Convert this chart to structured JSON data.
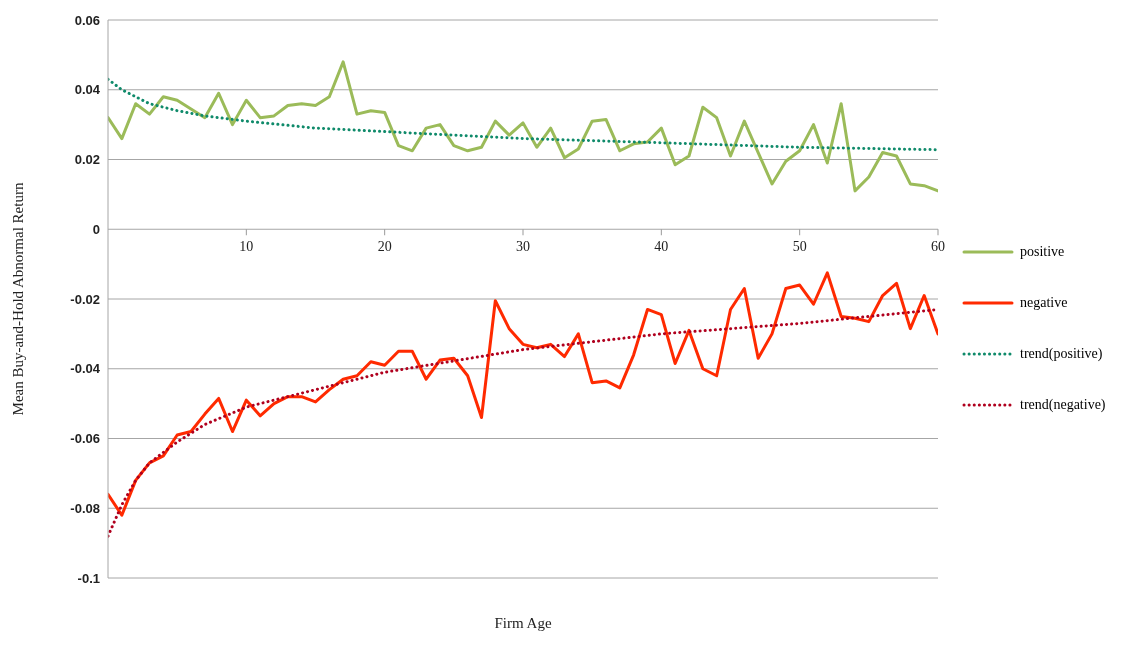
{
  "chart_data": {
    "type": "line",
    "xlabel": "Firm Age",
    "ylabel": "Mean Buy-and-Hold Abnormal Return",
    "xlim": [
      0,
      60
    ],
    "xticks": [
      10,
      20,
      30,
      40,
      50,
      60
    ],
    "ylim": [
      -0.1,
      0.06
    ],
    "yticks": [
      -0.1,
      -0.08,
      -0.06,
      -0.04,
      -0.02,
      0,
      0.02,
      0.04,
      0.06
    ],
    "grid": "y",
    "legend": "right",
    "marker": "none",
    "x": [
      0,
      1,
      2,
      3,
      4,
      5,
      6,
      7,
      8,
      9,
      10,
      11,
      12,
      13,
      14,
      15,
      16,
      17,
      18,
      19,
      20,
      21,
      22,
      23,
      24,
      25,
      26,
      27,
      28,
      29,
      30,
      31,
      32,
      33,
      34,
      35,
      36,
      37,
      38,
      39,
      40,
      41,
      42,
      43,
      44,
      45,
      46,
      47,
      48,
      49,
      50,
      51,
      52,
      53,
      54,
      55,
      56,
      57,
      58,
      59,
      60
    ],
    "series": [
      {
        "name": "positive",
        "color": "#9bbb59",
        "line_style": "solid",
        "values": [
          0.032,
          0.026,
          0.036,
          0.033,
          0.038,
          0.037,
          0.0345,
          0.032,
          0.039,
          0.03,
          0.037,
          0.032,
          0.0325,
          0.0355,
          0.036,
          0.0355,
          0.038,
          0.048,
          0.033,
          0.034,
          0.0335,
          0.024,
          0.0225,
          0.029,
          0.03,
          0.024,
          0.0225,
          0.0235,
          0.031,
          0.027,
          0.0305,
          0.0235,
          0.029,
          0.0205,
          0.023,
          0.031,
          0.0315,
          0.0225,
          0.0245,
          0.025,
          0.029,
          0.0185,
          0.021,
          0.035,
          0.032,
          0.021,
          0.031,
          0.022,
          0.013,
          0.0195,
          0.0225,
          0.03,
          0.019,
          0.036,
          0.011,
          0.015,
          0.022,
          0.021,
          0.013,
          0.0125,
          0.011
        ]
      },
      {
        "name": "negative",
        "color": "#ff2a00",
        "line_style": "solid",
        "values": [
          -0.076,
          -0.082,
          -0.072,
          -0.067,
          -0.065,
          -0.059,
          -0.058,
          -0.053,
          -0.0485,
          -0.058,
          -0.049,
          -0.0535,
          -0.05,
          -0.048,
          -0.048,
          -0.0495,
          -0.046,
          -0.043,
          -0.042,
          -0.038,
          -0.039,
          -0.035,
          -0.035,
          -0.043,
          -0.0375,
          -0.037,
          -0.042,
          -0.054,
          -0.0205,
          -0.0285,
          -0.033,
          -0.034,
          -0.033,
          -0.0365,
          -0.03,
          -0.044,
          -0.0435,
          -0.0455,
          -0.036,
          -0.023,
          -0.0245,
          -0.0385,
          -0.029,
          -0.04,
          -0.042,
          -0.023,
          -0.017,
          -0.037,
          -0.03,
          -0.017,
          -0.016,
          -0.0215,
          -0.0125,
          -0.025,
          -0.0255,
          -0.0265,
          -0.019,
          -0.0155,
          -0.0285,
          -0.019,
          -0.03
        ]
      },
      {
        "name": "trend(positive)",
        "color": "#0f8a6a",
        "line_style": "dotted",
        "x": [
          0,
          1,
          2,
          3,
          5,
          7,
          10,
          15,
          20,
          30,
          40,
          50,
          60
        ],
        "values": [
          0.043,
          0.04,
          0.038,
          0.036,
          0.034,
          0.0325,
          0.031,
          0.029,
          0.028,
          0.026,
          0.0248,
          0.0235,
          0.0228
        ]
      },
      {
        "name": "trend(negative)",
        "color": "#b0001e",
        "line_style": "dotted",
        "x": [
          0,
          1,
          2,
          3,
          5,
          7,
          10,
          15,
          20,
          30,
          40,
          50,
          60
        ],
        "values": [
          -0.088,
          -0.079,
          -0.072,
          -0.067,
          -0.061,
          -0.056,
          -0.051,
          -0.046,
          -0.041,
          -0.0345,
          -0.03,
          -0.027,
          -0.023
        ]
      }
    ]
  }
}
